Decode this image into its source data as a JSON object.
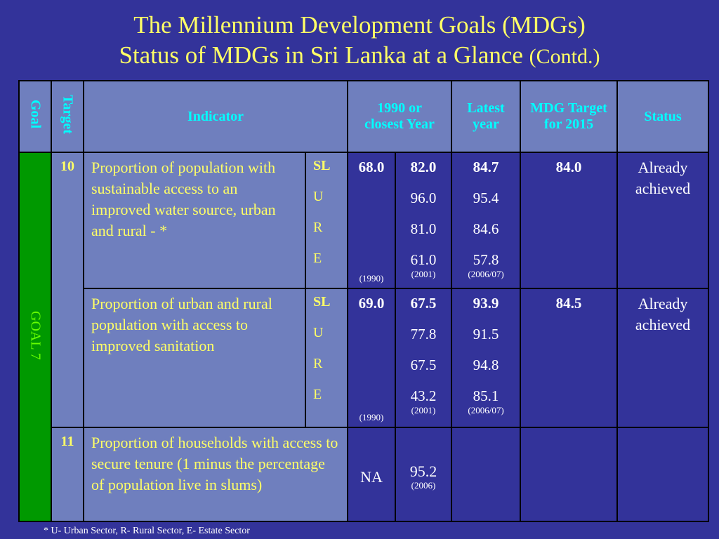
{
  "title": {
    "line1": "The Millennium Development Goals (MDGs)",
    "line2_main": "Status of MDGs in Sri Lanka at a Glance",
    "line2_contd": "(Contd.)"
  },
  "headers": {
    "goal": "Goal",
    "target": "Target",
    "indicator": "Indicator",
    "base_year": "1990 or closest Year",
    "latest": "Latest year",
    "mdg_target": "MDG Target for 2015",
    "status": "Status"
  },
  "goal_label": "GOAL 7",
  "rows": [
    {
      "target": "10",
      "indicator": "Proportion of population with sustainable access to an improved water source, urban and rural - *",
      "sectors": [
        "SL",
        "U",
        "R",
        "E"
      ],
      "base": "68.0",
      "base_year": "(1990)",
      "mid": [
        "82.0",
        "96.0",
        "81.0",
        "61.0"
      ],
      "mid_year": "(2001)",
      "latest": [
        "84.7",
        "95.4",
        "84.6",
        "57.8"
      ],
      "latest_year": "(2006/07)",
      "mdg_target": "84.0",
      "status": "Already achieved"
    },
    {
      "target": "",
      "indicator": "Proportion of urban and rural population with access to improved sanitation",
      "sectors": [
        "SL",
        "U",
        "R",
        "E"
      ],
      "base": "69.0",
      "base_year": "(1990)",
      "mid": [
        "67.5",
        "77.8",
        "67.5",
        "43.2"
      ],
      "mid_year": "(2001)",
      "latest": [
        "93.9",
        "91.5",
        "94.8",
        "85.1"
      ],
      "latest_year": "(2006/07)",
      "mdg_target": "84.5",
      "status": "Already achieved"
    },
    {
      "target": "11",
      "indicator": "Proportion of households with access to secure tenure (1 minus the percentage of population live in slums)",
      "base": "NA",
      "mid": "95.2",
      "mid_year": "(2006)"
    }
  ],
  "footnote": "*  U- Urban Sector,  R- Rural Sector, E- Estate Sector"
}
